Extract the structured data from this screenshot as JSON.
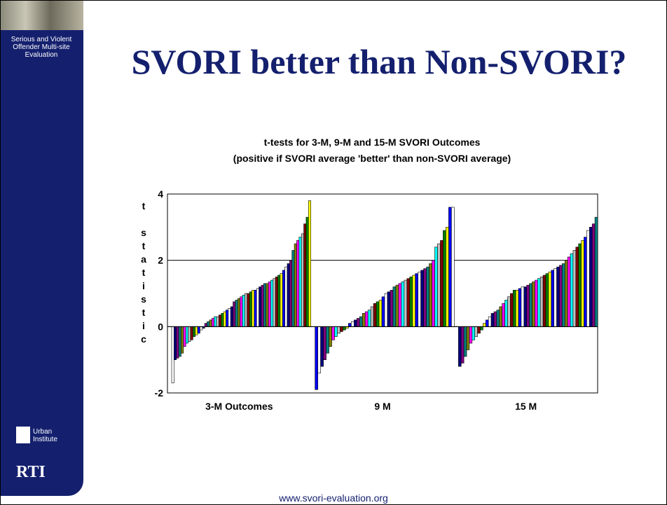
{
  "sidebar": {
    "caption": "Serious and Violent Offender Multi-site Evaluation",
    "logo1": "Urban Institute",
    "logo2": "RTI"
  },
  "footer": "www.svori-evaluation.org",
  "slide_title": "SVORI better than Non-SVORI?",
  "chart_data": {
    "type": "bar",
    "title": "t-tests for 3-M, 9-M and 15-M SVORI Outcomes",
    "subtitle": "(positive if SVORI average 'better' than non-SVORI average)",
    "y_label": "t statistic",
    "categories": [
      "3-M Outcomes",
      "9 M",
      "15 M"
    ],
    "values": [
      [
        -1.7,
        -1.0,
        -0.95,
        -0.9,
        -0.8,
        -0.6,
        -0.5,
        -0.45,
        -0.4,
        -0.3,
        -0.25,
        -0.2,
        -0.1,
        -0.05,
        0.1,
        0.15,
        0.2,
        0.25,
        0.3,
        0.3,
        0.35,
        0.4,
        0.45,
        0.5,
        0.55,
        0.6,
        0.75,
        0.8,
        0.85,
        0.9,
        0.95,
        1.0,
        1.0,
        1.05,
        1.1,
        1.1,
        1.15,
        1.2,
        1.25,
        1.3,
        1.3,
        1.35,
        1.4,
        1.45,
        1.5,
        1.55,
        1.6,
        1.7,
        1.8,
        1.9,
        2.0,
        2.3,
        2.5,
        2.6,
        2.7,
        2.8,
        3.1,
        3.3,
        3.8
      ],
      [
        -1.9,
        -1.4,
        -1.2,
        -1.0,
        -0.8,
        -0.6,
        -0.4,
        -0.3,
        -0.2,
        -0.15,
        -0.1,
        -0.05,
        0.1,
        0.15,
        0.2,
        0.25,
        0.3,
        0.4,
        0.45,
        0.5,
        0.6,
        0.7,
        0.75,
        0.8,
        0.9,
        1.0,
        1.05,
        1.1,
        1.2,
        1.25,
        1.3,
        1.35,
        1.4,
        1.45,
        1.5,
        1.55,
        1.6,
        1.65,
        1.7,
        1.75,
        1.8,
        1.9,
        2.0,
        2.4,
        2.5,
        2.6,
        2.9,
        3.0,
        3.6,
        3.6
      ],
      [
        -1.2,
        -1.1,
        -0.9,
        -0.7,
        -0.5,
        -0.4,
        -0.3,
        -0.2,
        -0.1,
        0.1,
        0.2,
        0.3,
        0.4,
        0.45,
        0.5,
        0.6,
        0.7,
        0.8,
        0.9,
        1.0,
        1.1,
        1.1,
        1.15,
        1.2,
        1.2,
        1.25,
        1.3,
        1.35,
        1.4,
        1.45,
        1.5,
        1.55,
        1.6,
        1.65,
        1.7,
        1.75,
        1.8,
        1.85,
        1.9,
        2.0,
        2.1,
        2.2,
        2.3,
        2.4,
        2.5,
        2.6,
        2.7,
        2.9,
        3.0,
        3.1,
        3.3
      ]
    ],
    "bar_colors": [
      "#ffffff",
      "#000080",
      "#800080",
      "#008080",
      "#808000",
      "#ff00ff",
      "#00ffff",
      "#c0c0c0",
      "#800000",
      "#008000",
      "#ffff00",
      "#0000ff"
    ],
    "ylim": [
      -2,
      4
    ],
    "yticks": [
      -2,
      0,
      2,
      4
    ],
    "grid": true
  }
}
